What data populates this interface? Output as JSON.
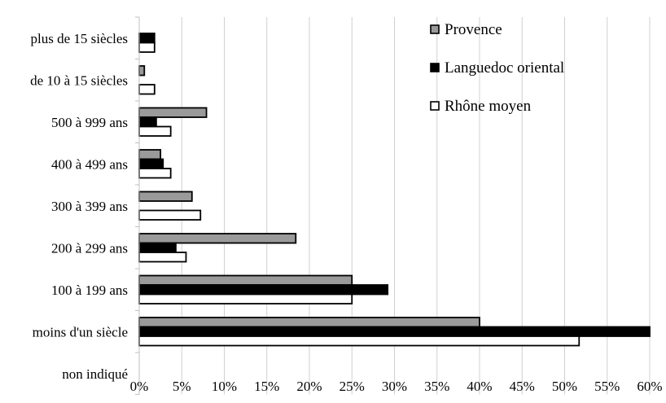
{
  "chart_data": {
    "type": "bar",
    "orientation": "horizontal",
    "categories": [
      "plus de 15 siècles",
      "de 10 à 15 siècles",
      "500 à 999 ans",
      "400 à 499 ans",
      "300 à 399 ans",
      "200 à 299 ans",
      "100 à 199 ans",
      "moins d'un siècle",
      "non indiqué"
    ],
    "series": [
      {
        "name": "Provence",
        "color": "#9a9a9a",
        "values": [
          0,
          0.6,
          7.9,
          2.5,
          6.2,
          18.4,
          25.0,
          40.0,
          0
        ]
      },
      {
        "name": "Languedoc oriental",
        "color": "#000000",
        "values": [
          1.8,
          0,
          2.0,
          2.8,
          0,
          4.3,
          29.2,
          60.0,
          0
        ]
      },
      {
        "name": "Rhône moyen",
        "color": "#ffffff",
        "values": [
          1.8,
          1.8,
          3.7,
          3.7,
          7.2,
          5.5,
          25.0,
          51.7,
          0
        ]
      }
    ],
    "xlim": [
      0,
      60
    ],
    "xticks": [
      "0%",
      "5%",
      "10%",
      "15%",
      "20%",
      "25%",
      "30%",
      "35%",
      "40%",
      "45%",
      "50%",
      "55%",
      "60%"
    ],
    "unit": "%",
    "grid": "vertical",
    "legend": "top-right",
    "title": "",
    "xlabel": "",
    "ylabel": ""
  }
}
